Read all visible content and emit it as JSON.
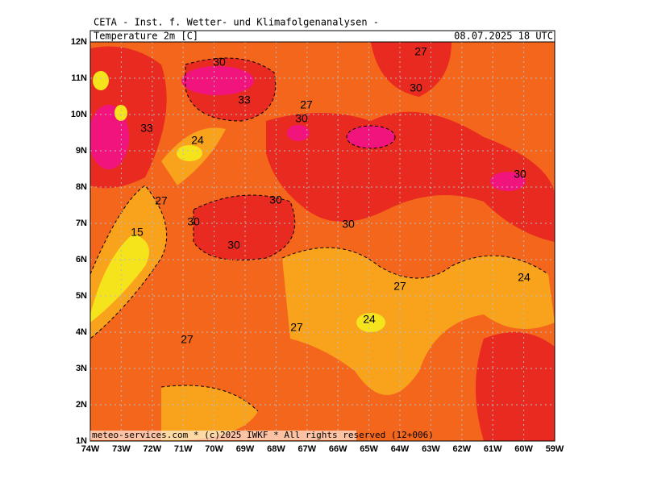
{
  "header": {
    "title": "CETA - Inst. f. Wetter- und Klimafolgenanalysen -",
    "field": "Temperature 2m [C]",
    "valid_time": "08.07.2025 18 UTC"
  },
  "map": {
    "lat_labels": [
      "12N",
      "11N",
      "10N",
      "9N",
      "8N",
      "7N",
      "6N",
      "5N",
      "4N",
      "3N",
      "2N",
      "1N"
    ],
    "lon_labels": [
      "74W",
      "73W",
      "72W",
      "71W",
      "70W",
      "69W",
      "68W",
      "67W",
      "66W",
      "65W",
      "64W",
      "63W",
      "62W",
      "61W",
      "60W",
      "59W"
    ],
    "contour_labels": [
      30,
      27,
      30,
      33,
      27,
      30,
      33,
      24,
      30,
      30,
      27,
      30,
      30,
      15,
      30,
      24,
      27,
      24,
      27,
      27
    ]
  },
  "footer": "meteo-services.com * (c)2025 IWKF * All rights reserved (12+006)"
}
